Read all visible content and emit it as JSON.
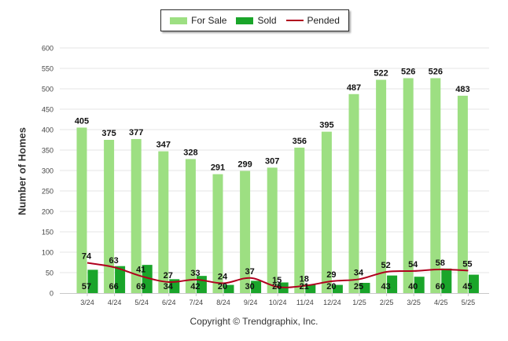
{
  "chart_data": {
    "type": "bar",
    "ylabel": "Number of Homes",
    "xlabel": "",
    "ylim": [
      0,
      600
    ],
    "yticks": [
      0,
      50,
      100,
      150,
      200,
      250,
      300,
      350,
      400,
      450,
      500,
      550,
      600
    ],
    "grid": true,
    "legend_position": "top-center",
    "categories": [
      "3/24",
      "4/24",
      "5/24",
      "6/24",
      "7/24",
      "8/24",
      "9/24",
      "10/24",
      "11/24",
      "12/24",
      "1/25",
      "2/25",
      "3/25",
      "4/25",
      "5/25"
    ],
    "series": [
      {
        "name": "For Sale",
        "type": "bar",
        "color": "#9ddf82",
        "values": [
          405,
          375,
          377,
          347,
          328,
          291,
          299,
          307,
          356,
          395,
          487,
          522,
          526,
          526,
          483
        ]
      },
      {
        "name": "Sold",
        "type": "bar",
        "color": "#1aa52a",
        "values": [
          57,
          66,
          69,
          34,
          42,
          20,
          30,
          26,
          21,
          20,
          25,
          43,
          40,
          60,
          45
        ]
      },
      {
        "name": "Pended",
        "type": "line",
        "color": "#b0001e",
        "values": [
          74,
          63,
          41,
          27,
          33,
          24,
          37,
          15,
          18,
          29,
          34,
          52,
          54,
          58,
          55
        ]
      }
    ]
  },
  "copyright": "Copyright © Trendgraphix, Inc."
}
